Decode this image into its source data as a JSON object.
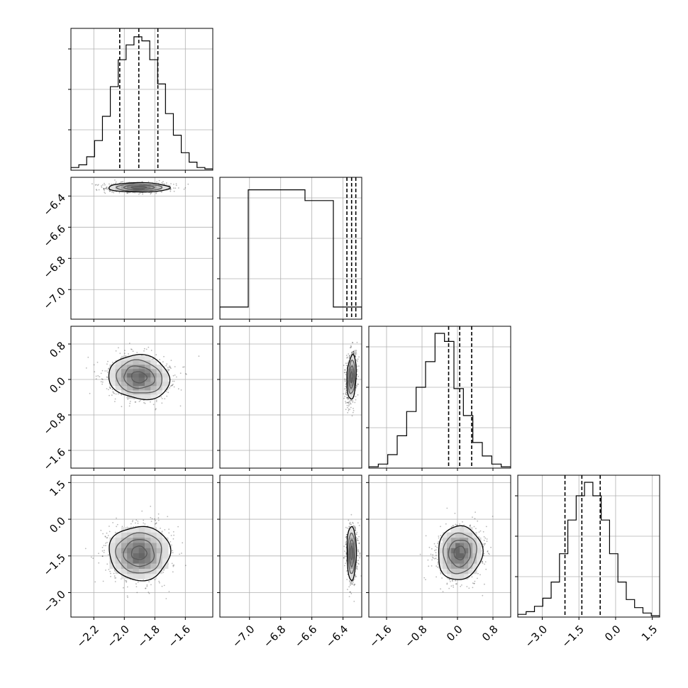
{
  "chart_data": {
    "type": "corner",
    "grid": true,
    "parameters": [
      {
        "ticks": [
          -2.2,
          -2.0,
          -1.8,
          -1.6
        ],
        "range": [
          -2.35,
          -1.42
        ],
        "quantiles": [
          -2.03,
          -1.905,
          -1.78
        ],
        "hist": [
          0.02,
          0.04,
          0.1,
          0.22,
          0.4,
          0.62,
          0.82,
          0.93,
          0.99,
          0.96,
          0.82,
          0.64,
          0.42,
          0.26,
          0.13,
          0.06,
          0.02,
          0.01
        ]
      },
      {
        "ticks": [
          -7.0,
          -6.8,
          -6.6,
          -6.4
        ],
        "range": [
          -7.19,
          -6.28
        ],
        "quantiles": [
          -6.375,
          -6.345,
          -6.318
        ],
        "hist": [
          0.09,
          0.96,
          0.96,
          0.88,
          0.09
        ]
      },
      {
        "ticks": [
          -1.6,
          -0.8,
          0.0,
          0.8
        ],
        "range": [
          -2.0,
          1.2
        ],
        "quantiles": [
          -0.2,
          0.05,
          0.32
        ],
        "hist": [
          0.01,
          0.03,
          0.1,
          0.24,
          0.42,
          0.6,
          0.79,
          1.0,
          0.94,
          0.59,
          0.39,
          0.19,
          0.09,
          0.03,
          0.01
        ]
      },
      {
        "ticks": [
          -3.0,
          -1.5,
          0.0,
          1.5
        ],
        "range": [
          -4.0,
          1.8
        ],
        "quantiles": [
          -2.07,
          -1.38,
          -0.63
        ],
        "hist": [
          0.02,
          0.04,
          0.08,
          0.14,
          0.26,
          0.47,
          0.72,
          0.9,
          1.0,
          0.9,
          0.72,
          0.47,
          0.26,
          0.13,
          0.07,
          0.03,
          0.01
        ]
      }
    ],
    "pairs": [
      {
        "x": 0,
        "y": 1,
        "center": [
          -1.905,
          -6.345
        ],
        "spread": [
          0.1,
          0.015
        ],
        "rho": 0.0,
        "skew": 0.0
      },
      {
        "x": 0,
        "y": 2,
        "center": [
          -1.905,
          0.05
        ],
        "spread": [
          0.1,
          0.25
        ],
        "rho": -0.1,
        "skew": 0.15
      },
      {
        "x": 1,
        "y": 2,
        "center": [
          -6.345,
          0.05
        ],
        "spread": [
          0.015,
          0.25
        ],
        "rho": 0.2,
        "skew": 0.0
      },
      {
        "x": 0,
        "y": 3,
        "center": [
          -1.905,
          -1.38
        ],
        "spread": [
          0.1,
          0.55
        ],
        "rho": 0.0,
        "skew": 0.2
      },
      {
        "x": 1,
        "y": 3,
        "center": [
          -6.345,
          -1.38
        ],
        "spread": [
          0.015,
          0.55
        ],
        "rho": 0.0,
        "skew": 0.0
      },
      {
        "x": 2,
        "y": 3,
        "center": [
          0.05,
          -1.38
        ],
        "spread": [
          0.25,
          0.55
        ],
        "rho": 0.05,
        "skew": 0.0
      }
    ]
  }
}
